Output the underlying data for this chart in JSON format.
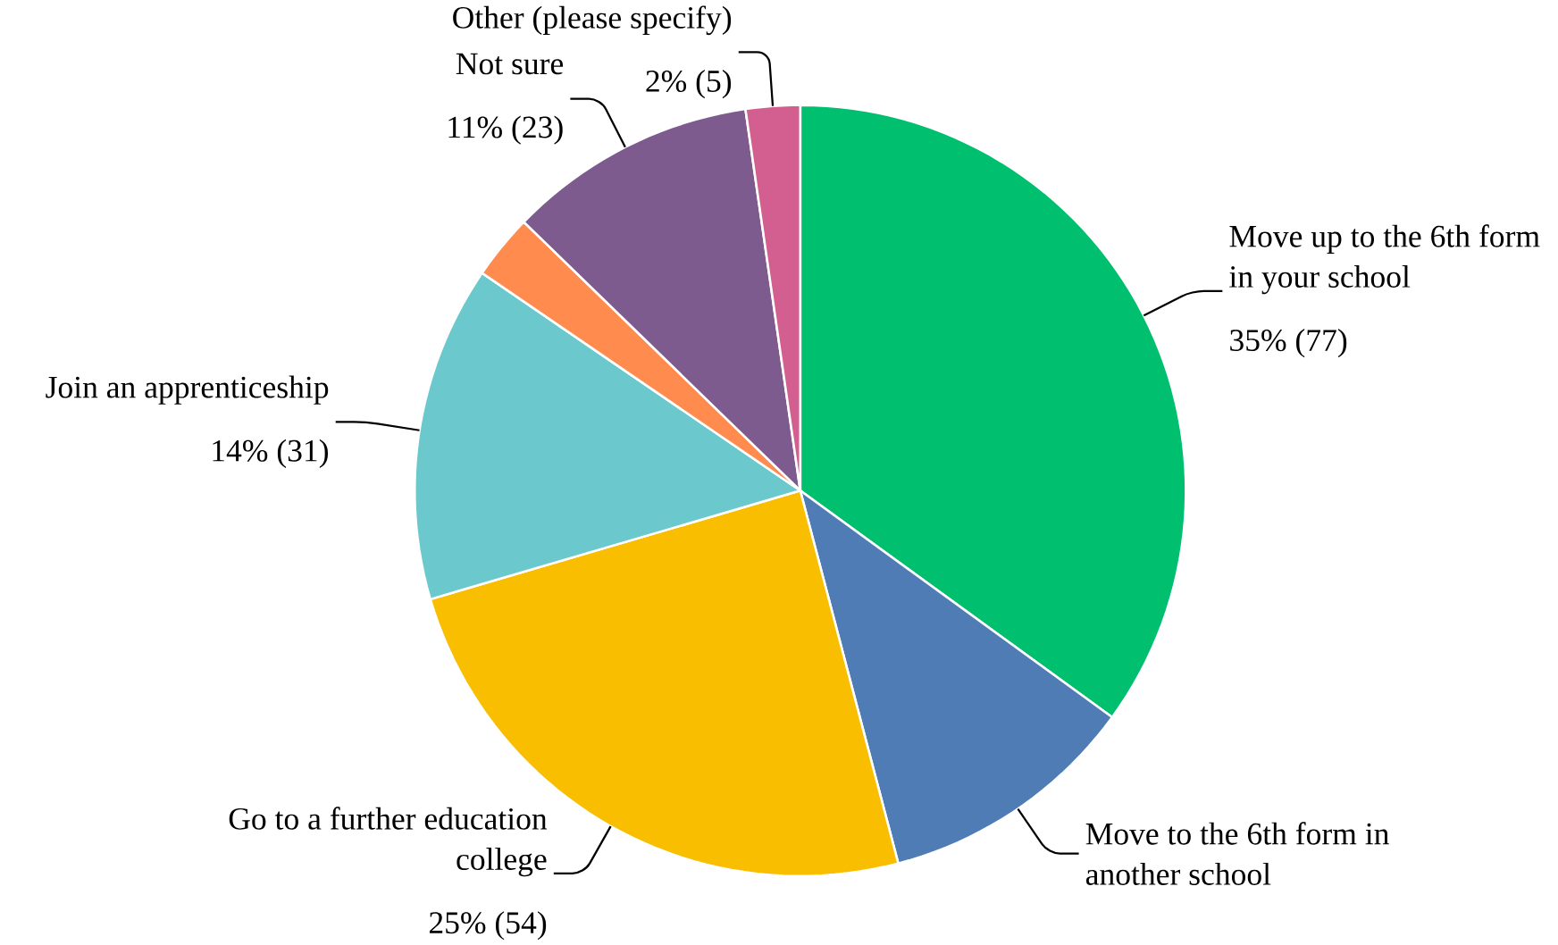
{
  "chart_data": {
    "type": "pie",
    "categories": [
      "Move up to the 6th form in your school",
      "Move to the 6th form in another school",
      "Go to a further education college",
      "Join an apprenticeship",
      null,
      "Not sure",
      "Other (please specify)"
    ],
    "values": [
      77,
      24,
      54,
      31,
      6,
      23,
      5
    ],
    "colors": [
      "#00bf6f",
      "#507cb6",
      "#f9be00",
      "#6bc8cd",
      "#ff8b4f",
      "#7d5b8f",
      "#d25f90"
    ],
    "value_labels": [
      "35% (77)",
      null,
      "25% (54)",
      "14% (31)",
      null,
      "11% (23)",
      "2% (5)"
    ]
  }
}
